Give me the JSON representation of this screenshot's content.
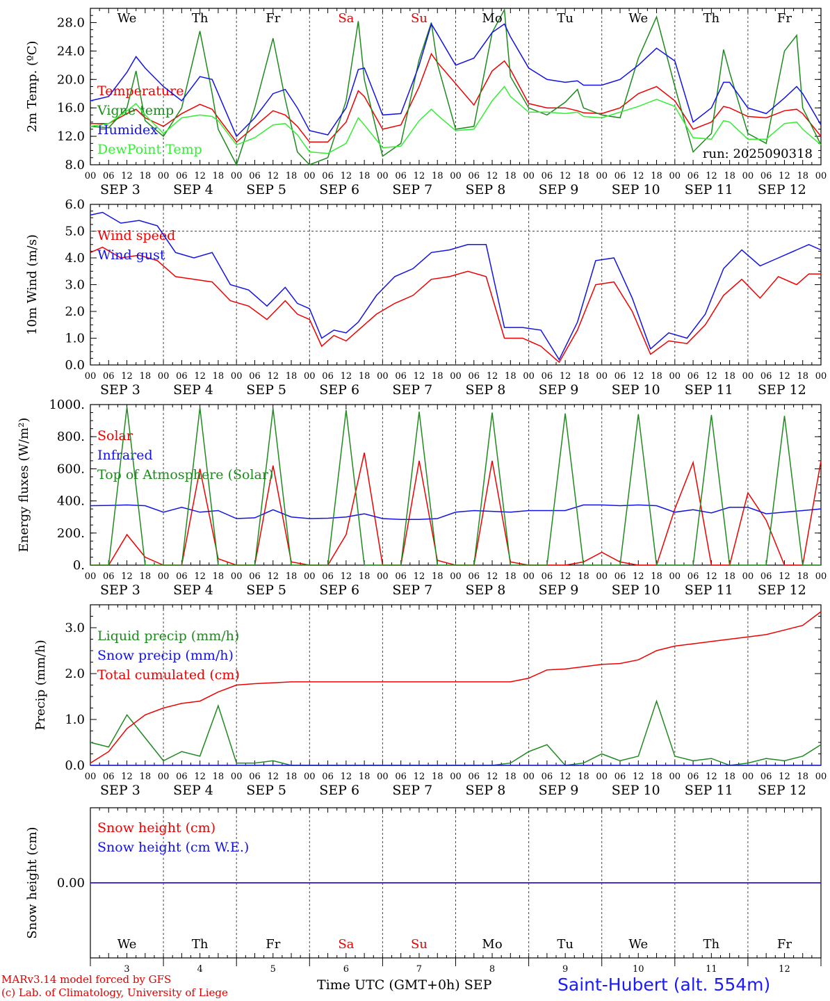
{
  "colors": {
    "red": "#ee0000",
    "green": "#1e8a1e",
    "blue": "#1212e6",
    "lightgreen": "#33ee33",
    "axis": "#000000",
    "grid": "#444444"
  },
  "days": [
    {
      "abbr": "We",
      "date": "SEP  3",
      "num": "3",
      "weekend": false
    },
    {
      "abbr": "Th",
      "date": "SEP  4",
      "num": "4",
      "weekend": false
    },
    {
      "abbr": "Fr",
      "date": "SEP  5",
      "num": "5",
      "weekend": false
    },
    {
      "abbr": "Sa",
      "date": "SEP  6",
      "num": "6",
      "weekend": true
    },
    {
      "abbr": "Su",
      "date": "SEP  7",
      "num": "7",
      "weekend": true
    },
    {
      "abbr": "Mo",
      "date": "SEP  8",
      "num": "8",
      "weekend": false
    },
    {
      "abbr": "Tu",
      "date": "SEP  9",
      "num": "9",
      "weekend": false
    },
    {
      "abbr": "We",
      "date": "SEP 10",
      "num": "10",
      "weekend": false
    },
    {
      "abbr": "Th",
      "date": "SEP 11",
      "num": "11",
      "weekend": false
    },
    {
      "abbr": "Fr",
      "date": "SEP 12",
      "num": "12",
      "weekend": false
    }
  ],
  "hour_labels": [
    "00",
    "06",
    "12",
    "18"
  ],
  "footer": {
    "model": "MARv3.14 model forced by GFS",
    "credit": "(c) Lab. of Climatology, University of Liege",
    "xlabel": "Time UTC (GMT+0h)",
    "month": "SEP",
    "station": "Saint-Hubert (alt. 554m)"
  },
  "chart_data": [
    {
      "type": "line",
      "ylabel": "2m Temp. (ºC)",
      "ylim": [
        8,
        30
      ],
      "yticks": [
        "8.0",
        "12.0",
        "16.0",
        "20.0",
        "24.0",
        "28.0"
      ],
      "annotation": "run: 2025090318",
      "x_hours": [
        0,
        6,
        12,
        15,
        18,
        24,
        30,
        36,
        40,
        42,
        48,
        54,
        60,
        64,
        68,
        72,
        78,
        84,
        88,
        90,
        96,
        102,
        108,
        112,
        114,
        120,
        126,
        132,
        136,
        138,
        144,
        150,
        156,
        160,
        162,
        168,
        174,
        180,
        186,
        192,
        198,
        204,
        208,
        210,
        216,
        222,
        228,
        232,
        234,
        240
      ],
      "series": [
        {
          "name": "Temperature",
          "color": "red",
          "values": [
            13.8,
            13.8,
            15.2,
            15.8,
            14.6,
            13.4,
            15.2,
            16.5,
            15.8,
            14.6,
            11.2,
            13.4,
            15.6,
            15.0,
            13.4,
            11.2,
            11.2,
            14.0,
            18.4,
            17.6,
            13.0,
            13.6,
            19.0,
            23.6,
            22.4,
            19.4,
            16.4,
            21.2,
            22.6,
            21.4,
            16.6,
            16.0,
            16.0,
            15.6,
            15.3,
            15.2,
            16.0,
            18.0,
            19.0,
            17.0,
            13.0,
            14.0,
            16.2,
            16.0,
            14.8,
            14.6,
            15.6,
            15.8,
            15.2,
            12.0
          ]
        },
        {
          "name": "Vigne temp",
          "color": "green",
          "values": [
            13.4,
            13.2,
            16.0,
            21.2,
            14.2,
            12.0,
            16.0,
            26.8,
            18.0,
            13.0,
            7.2,
            16.0,
            25.8,
            17.2,
            9.8,
            7.6,
            9.0,
            17.0,
            28.2,
            20.0,
            9.2,
            11.0,
            22.8,
            28.0,
            22.2,
            13.0,
            13.4,
            26.6,
            29.8,
            20.4,
            16.0,
            15.0,
            16.8,
            18.6,
            16.0,
            15.0,
            14.6,
            23.0,
            28.8,
            19.0,
            9.8,
            12.4,
            24.2,
            21.0,
            12.4,
            11.0,
            24.0,
            26.2,
            16.0,
            10.8
          ]
        },
        {
          "name": "Humidex",
          "color": "blue",
          "values": [
            17.0,
            17.6,
            21.0,
            23.2,
            21.6,
            19.0,
            17.0,
            20.4,
            20.0,
            18.0,
            12.0,
            14.6,
            18.0,
            18.6,
            16.0,
            12.8,
            12.2,
            16.0,
            21.4,
            21.6,
            15.0,
            15.2,
            22.0,
            27.8,
            26.4,
            22.0,
            23.0,
            26.6,
            27.8,
            26.0,
            21.6,
            20.0,
            19.6,
            19.8,
            19.2,
            19.2,
            20.0,
            22.0,
            24.4,
            22.6,
            14.0,
            16.0,
            19.6,
            19.6,
            16.0,
            15.2,
            17.4,
            19.0,
            18.0,
            13.6
          ]
        },
        {
          "name": "DewPoint Temp",
          "color": "lightgreen",
          "values": [
            13.4,
            13.8,
            15.6,
            16.6,
            15.0,
            12.4,
            14.6,
            15.0,
            14.8,
            14.2,
            10.8,
            11.8,
            13.6,
            13.8,
            12.2,
            9.8,
            9.6,
            11.0,
            14.6,
            13.6,
            10.4,
            10.6,
            14.2,
            15.8,
            15.0,
            12.8,
            13.0,
            17.0,
            19.0,
            17.6,
            15.4,
            15.4,
            15.2,
            15.4,
            14.8,
            14.6,
            15.4,
            16.2,
            17.2,
            16.2,
            11.8,
            11.6,
            14.2,
            14.0,
            11.6,
            11.6,
            13.8,
            14.0,
            13.0,
            10.8
          ]
        }
      ]
    },
    {
      "type": "line",
      "ylabel": "10m Wind (m/s)",
      "ylim": [
        0,
        6
      ],
      "yticks": [
        "0.0",
        "1.0",
        "2.0",
        "3.0",
        "4.0",
        "5.0",
        "6.0"
      ],
      "reference_line": 5.0,
      "x_hours": [
        0,
        4,
        10,
        16,
        22,
        28,
        34,
        40,
        46,
        52,
        58,
        64,
        68,
        72,
        76,
        80,
        84,
        88,
        94,
        100,
        106,
        112,
        118,
        124,
        130,
        136,
        142,
        148,
        154,
        160,
        166,
        172,
        178,
        184,
        190,
        196,
        202,
        208,
        214,
        220,
        226,
        232,
        236,
        240
      ],
      "series": [
        {
          "name": "Wind speed",
          "color": "red",
          "values": [
            4.2,
            4.4,
            4.0,
            4.1,
            3.9,
            3.3,
            3.2,
            3.1,
            2.4,
            2.2,
            1.7,
            2.4,
            1.9,
            1.7,
            0.7,
            1.1,
            0.9,
            1.3,
            1.9,
            2.3,
            2.6,
            3.2,
            3.3,
            3.5,
            3.3,
            1.0,
            1.0,
            0.7,
            0.1,
            1.3,
            3.0,
            3.1,
            2.0,
            0.4,
            0.9,
            0.8,
            1.5,
            2.6,
            3.2,
            2.5,
            3.3,
            3.0,
            3.4,
            3.4
          ]
        },
        {
          "name": "Wind gust",
          "color": "blue",
          "values": [
            5.6,
            5.7,
            5.3,
            5.4,
            5.2,
            4.2,
            4.0,
            4.2,
            3.0,
            2.8,
            2.2,
            2.9,
            2.3,
            2.1,
            1.0,
            1.3,
            1.2,
            1.6,
            2.6,
            3.3,
            3.6,
            4.2,
            4.3,
            4.5,
            4.5,
            1.4,
            1.4,
            1.3,
            0.2,
            1.6,
            3.9,
            4.0,
            2.5,
            0.6,
            1.2,
            1.0,
            1.9,
            3.6,
            4.3,
            3.7,
            4.0,
            4.3,
            4.5,
            4.3
          ]
        }
      ]
    },
    {
      "type": "line",
      "ylabel": "Energy fluxes (W/m²)",
      "ylim": [
        0,
        1000
      ],
      "yticks": [
        "0.",
        "200.",
        "400.",
        "600.",
        "800.",
        "1000."
      ],
      "x_hours": [
        0,
        6,
        12,
        18,
        24,
        30,
        36,
        42,
        48,
        54,
        60,
        66,
        72,
        78,
        84,
        90,
        96,
        102,
        108,
        114,
        120,
        126,
        132,
        138,
        144,
        150,
        156,
        162,
        168,
        174,
        180,
        186,
        192,
        198,
        204,
        210,
        216,
        222,
        228,
        234,
        240
      ],
      "series": [
        {
          "name": "Solar",
          "color": "red",
          "values": [
            0,
            0,
            190,
            50,
            0,
            0,
            600,
            40,
            0,
            0,
            620,
            20,
            0,
            0,
            190,
            700,
            0,
            0,
            650,
            30,
            0,
            0,
            650,
            20,
            0,
            0,
            0,
            20,
            80,
            20,
            0,
            0,
            350,
            640,
            0,
            0,
            450,
            280,
            0,
            0,
            650
          ]
        },
        {
          "name": "Infrared",
          "color": "blue",
          "values": [
            370,
            372,
            375,
            370,
            330,
            360,
            330,
            340,
            290,
            295,
            345,
            300,
            290,
            292,
            300,
            320,
            290,
            285,
            285,
            290,
            330,
            340,
            335,
            330,
            340,
            340,
            340,
            375,
            375,
            370,
            375,
            370,
            330,
            345,
            325,
            360,
            360,
            320,
            330,
            340,
            350
          ]
        },
        {
          "name": "Top of Atmosphere (Solar)",
          "color": "green",
          "values": [
            0,
            0,
            985,
            0,
            0,
            0,
            980,
            0,
            0,
            0,
            975,
            0,
            0,
            0,
            965,
            0,
            0,
            0,
            955,
            0,
            0,
            0,
            950,
            0,
            0,
            0,
            945,
            0,
            0,
            0,
            940,
            0,
            0,
            0,
            935,
            0,
            0,
            0,
            930,
            0,
            0
          ]
        }
      ]
    },
    {
      "type": "line",
      "ylabel": "Precip (mm/h)",
      "ylim": [
        0,
        3.5
      ],
      "yticks": [
        "0.0",
        "1.0",
        "2.0",
        "3.0"
      ],
      "x_hours": [
        0,
        6,
        12,
        18,
        24,
        30,
        36,
        42,
        48,
        54,
        60,
        66,
        72,
        78,
        84,
        90,
        96,
        102,
        108,
        114,
        120,
        126,
        132,
        138,
        144,
        150,
        156,
        162,
        168,
        174,
        180,
        186,
        192,
        198,
        204,
        210,
        216,
        222,
        228,
        234,
        240
      ],
      "series": [
        {
          "name": "Liquid precip (mm/h)",
          "color": "green",
          "values": [
            0.5,
            0.4,
            1.1,
            0.6,
            0.1,
            0.3,
            0.2,
            1.3,
            0.05,
            0.05,
            0.1,
            0.0,
            0.0,
            0.0,
            0.0,
            0.0,
            0.0,
            0.0,
            0.0,
            0.0,
            0.0,
            0.0,
            0.0,
            0.05,
            0.3,
            0.45,
            0.0,
            0.05,
            0.25,
            0.1,
            0.2,
            1.4,
            0.2,
            0.1,
            0.15,
            0.0,
            0.05,
            0.15,
            0.1,
            0.2,
            0.45
          ]
        },
        {
          "name": "Snow precip (mm/h)",
          "color": "blue",
          "values": [
            0,
            0,
            0,
            0,
            0,
            0,
            0,
            0,
            0,
            0,
            0,
            0,
            0,
            0,
            0,
            0,
            0,
            0,
            0,
            0,
            0,
            0,
            0,
            0,
            0,
            0,
            0,
            0,
            0,
            0,
            0,
            0,
            0,
            0,
            0,
            0,
            0,
            0,
            0,
            0,
            0
          ]
        },
        {
          "name": "Total cumulated (cm)",
          "color": "red",
          "values": [
            0.05,
            0.3,
            0.8,
            1.1,
            1.25,
            1.35,
            1.4,
            1.6,
            1.75,
            1.78,
            1.8,
            1.82,
            1.82,
            1.82,
            1.82,
            1.82,
            1.82,
            1.82,
            1.82,
            1.82,
            1.82,
            1.82,
            1.82,
            1.82,
            1.9,
            2.08,
            2.1,
            2.15,
            2.2,
            2.22,
            2.3,
            2.5,
            2.6,
            2.65,
            2.7,
            2.75,
            2.8,
            2.85,
            2.95,
            3.05,
            3.35
          ]
        }
      ]
    },
    {
      "type": "line",
      "ylabel": "Snow height (cm)",
      "ylim": [
        -1,
        1
      ],
      "yticks": [
        "0.00"
      ],
      "x_hours": [
        0,
        240
      ],
      "series": [
        {
          "name": "Snow height (cm)",
          "color": "red",
          "values": [
            0,
            0
          ]
        },
        {
          "name": "Snow height (cm W.E.)",
          "color": "blue",
          "values": [
            0,
            0
          ]
        }
      ]
    }
  ]
}
